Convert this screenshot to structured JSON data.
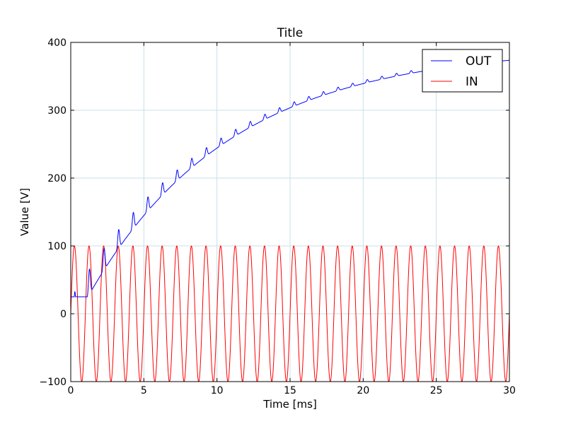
{
  "chart_data": {
    "type": "line",
    "title": "Title",
    "xlabel": "Time  [ms]",
    "ylabel": "Value  [V]",
    "xlim": [
      0,
      30
    ],
    "ylim": [
      -100,
      400
    ],
    "xticks": [
      0,
      5,
      10,
      15,
      20,
      25,
      30
    ],
    "yticks": [
      -100,
      0,
      100,
      200,
      300,
      400
    ],
    "xtick_labels": [
      "0",
      "5",
      "10",
      "15",
      "20",
      "25",
      "30"
    ],
    "ytick_labels": [
      "−100",
      "0",
      "100",
      "200",
      "300",
      "400"
    ],
    "grid": true,
    "legend": {
      "position": "top-right"
    },
    "series": [
      {
        "name": "OUT",
        "color": "#0000ff",
        "description": "rectifier/multiplier output: stepwise rise toward ~395 V with ripple each cycle",
        "steady_state": 395,
        "time_constant": 10,
        "ripple_pk_pk_start": 45,
        "ripple_pk_pk_end": 3
      },
      {
        "name": "IN",
        "color": "#ff0000",
        "amplitude": 100,
        "period": 1.0,
        "phase_deg": 0,
        "offset": 0
      }
    ]
  },
  "style": {
    "grid_color": "#c8e0e8",
    "axes_color": "#000000"
  }
}
